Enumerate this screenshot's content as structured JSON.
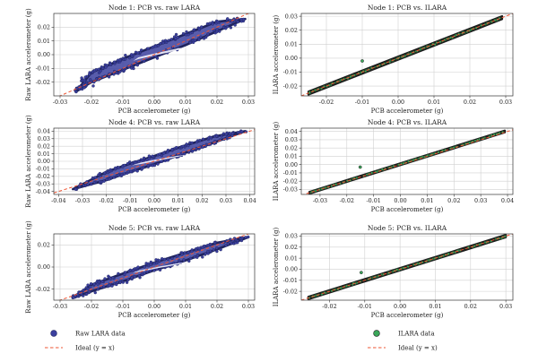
{
  "colors": {
    "raw_fill": "#3b3f9e",
    "raw_edge": "#20245e",
    "ilara_fill": "#3aa75a",
    "ilara_edge": "#1c1c1c",
    "ideal_line": "#ee5533",
    "grid": "#d0d0d0",
    "center_gap": "#f6f6ff"
  },
  "legend": [
    {
      "marker": "circle",
      "color_key": "raw_fill",
      "label": "Raw LARA data"
    },
    {
      "marker": "dashed-line",
      "color_key": "ideal_line",
      "label": "Ideal (y = x)"
    },
    {
      "marker": "circle",
      "color_key": "ilara_fill",
      "label": "ILARA data"
    },
    {
      "marker": "dashed-line",
      "color_key": "ideal_line",
      "label": "Ideal (y = x)"
    }
  ],
  "chart_data": [
    {
      "type": "scatter",
      "title": "Node 1: PCB vs. raw LARA",
      "xlabel": "PCB accelerometer (g)",
      "ylabel": "Raw LARA accelerometer (g)",
      "xlim": [
        -0.032,
        0.032
      ],
      "ylim": [
        -0.03,
        0.03
      ],
      "xticks": [
        "-0.03",
        "-0.02",
        "-0.01",
        "0.00",
        "0.01",
        "0.02",
        "0.03"
      ],
      "yticks": [
        "-0.02",
        "-0.01",
        "0.00",
        "0.01",
        "0.02"
      ],
      "grid": true,
      "series": [
        {
          "kind": "loop",
          "color_key": "raw_fill",
          "x_range": [
            -0.025,
            0.029
          ],
          "y_range": [
            -0.027,
            0.028
          ],
          "points": [
            [
              -0.025,
              -0.027
            ],
            [
              -0.02,
              -0.02
            ],
            [
              -0.01,
              -0.011
            ],
            [
              0.0,
              -0.002
            ],
            [
              0.01,
              0.007
            ],
            [
              0.02,
              0.017
            ],
            [
              0.029,
              0.026
            ],
            [
              0.02,
              0.024
            ],
            [
              0.01,
              0.015
            ],
            [
              0.0,
              0.006
            ],
            [
              -0.01,
              -0.003
            ],
            [
              -0.02,
              -0.013
            ]
          ]
        },
        {
          "kind": "ideal",
          "color_key": "ideal_line",
          "x": [
            -0.032,
            0.032
          ],
          "y": [
            -0.032,
            0.032
          ]
        }
      ]
    },
    {
      "type": "scatter",
      "title": "Node 1: PCB vs. ILARA",
      "xlabel": "PCB accelerometer (g)",
      "ylabel": "ILARA accelerometer (g)",
      "xlim": [
        -0.027,
        0.032
      ],
      "ylim": [
        -0.027,
        0.032
      ],
      "xticks": [
        "-0.02",
        "-0.01",
        "0.00",
        "0.01",
        "0.02",
        "0.03"
      ],
      "yticks": [
        "-0.02",
        "-0.01",
        "0.00",
        "0.01",
        "0.02",
        "0.03"
      ],
      "grid": true,
      "series": [
        {
          "kind": "band",
          "color_key": "ilara_fill",
          "x_range": [
            -0.025,
            0.029
          ],
          "y_range": [
            -0.025,
            0.029
          ],
          "outliers": [
            [
              -0.01,
              -0.002
            ]
          ]
        },
        {
          "kind": "ideal",
          "color_key": "ideal_line",
          "x": [
            -0.027,
            0.032
          ],
          "y": [
            -0.027,
            0.032
          ]
        }
      ]
    },
    {
      "type": "scatter",
      "title": "Node 4: PCB vs. raw LARA",
      "xlabel": "PCB accelerometer (g)",
      "ylabel": "Raw LARA accelerometer (g)",
      "xlim": [
        -0.042,
        0.042
      ],
      "ylim": [
        -0.044,
        0.044
      ],
      "xticks": [
        "-0.04",
        "-0.03",
        "-0.02",
        "-0.01",
        "0.00",
        "0.01",
        "0.02",
        "0.03",
        "0.04"
      ],
      "yticks": [
        "-0.04",
        "-0.03",
        "-0.02",
        "-0.01",
        "0.00",
        "0.01",
        "0.02",
        "0.03",
        "0.04"
      ],
      "grid": true,
      "series": [
        {
          "kind": "loop",
          "color_key": "raw_fill",
          "x_range": [
            -0.034,
            0.038
          ],
          "y_range": [
            -0.037,
            0.04
          ],
          "points": [
            [
              -0.034,
              -0.037
            ],
            [
              -0.02,
              -0.025
            ],
            [
              -0.01,
              -0.014
            ],
            [
              0.0,
              -0.004
            ],
            [
              0.01,
              0.008
            ],
            [
              0.02,
              0.019
            ],
            [
              0.038,
              0.04
            ],
            [
              0.025,
              0.033
            ],
            [
              0.01,
              0.018
            ],
            [
              0.0,
              0.007
            ],
            [
              -0.01,
              -0.003
            ],
            [
              -0.02,
              -0.014
            ]
          ]
        },
        {
          "kind": "ideal",
          "color_key": "ideal_line",
          "x": [
            -0.042,
            0.042
          ],
          "y": [
            -0.042,
            0.042
          ]
        }
      ]
    },
    {
      "type": "scatter",
      "title": "Node 4: PCB vs. ILARA",
      "xlabel": "PCB accelerometer (g)",
      "ylabel": "ILARA accelerometer (g)",
      "xlim": [
        -0.037,
        0.042
      ],
      "ylim": [
        -0.036,
        0.044
      ],
      "xticks": [
        "-0.03",
        "-0.02",
        "-0.01",
        "0.00",
        "0.01",
        "0.02",
        "0.03",
        "0.04"
      ],
      "yticks": [
        "-0.03",
        "-0.02",
        "-0.01",
        "0.00",
        "0.01",
        "0.02",
        "0.03",
        "0.04"
      ],
      "grid": true,
      "series": [
        {
          "kind": "band",
          "color_key": "ilara_fill",
          "x_range": [
            -0.034,
            0.039
          ],
          "y_range": [
            -0.034,
            0.04
          ],
          "outliers": [
            [
              -0.015,
              -0.003
            ]
          ]
        },
        {
          "kind": "ideal",
          "color_key": "ideal_line",
          "x": [
            -0.037,
            0.042
          ],
          "y": [
            -0.037,
            0.042
          ]
        }
      ]
    },
    {
      "type": "scatter",
      "title": "Node 5: PCB vs. raw LARA",
      "xlabel": "PCB accelerometer (g)",
      "ylabel": "Raw LARA accelerometer (g)",
      "xlim": [
        -0.032,
        0.032
      ],
      "ylim": [
        -0.03,
        0.03
      ],
      "xticks": [
        "-0.03",
        "-0.02",
        "-0.01",
        "0.00",
        "0.01",
        "0.02",
        "0.03"
      ],
      "yticks": [
        "-0.02",
        "0.00",
        "0.02"
      ],
      "grid": true,
      "series": [
        {
          "kind": "loop",
          "color_key": "raw_fill",
          "x_range": [
            -0.026,
            0.03
          ],
          "y_range": [
            -0.028,
            0.027
          ],
          "points": [
            [
              -0.026,
              -0.028
            ],
            [
              -0.02,
              -0.022
            ],
            [
              -0.01,
              -0.013
            ],
            [
              0.0,
              -0.003
            ],
            [
              0.01,
              0.006
            ],
            [
              0.02,
              0.016
            ],
            [
              0.03,
              0.027
            ],
            [
              0.02,
              0.022
            ],
            [
              0.01,
              0.013
            ],
            [
              0.0,
              0.004
            ],
            [
              -0.01,
              -0.006
            ],
            [
              -0.02,
              -0.016
            ]
          ]
        },
        {
          "kind": "ideal",
          "color_key": "ideal_line",
          "x": [
            -0.032,
            0.032
          ],
          "y": [
            -0.032,
            0.032
          ]
        }
      ]
    },
    {
      "type": "scatter",
      "title": "Node 5: PCB vs. ILARA",
      "xlabel": "PCB accelerometer (g)",
      "ylabel": "ILARA accelerometer (g)",
      "xlim": [
        -0.028,
        0.032
      ],
      "ylim": [
        -0.028,
        0.032
      ],
      "xticks": [
        "-0.02",
        "-0.01",
        "0.00",
        "0.01",
        "0.02",
        "0.03"
      ],
      "yticks": [
        "-0.02",
        "-0.01",
        "0.00",
        "0.01",
        "0.02",
        "0.03"
      ],
      "grid": true,
      "series": [
        {
          "kind": "band",
          "color_key": "ilara_fill",
          "x_range": [
            -0.026,
            0.03
          ],
          "y_range": [
            -0.026,
            0.03
          ],
          "outliers": [
            [
              -0.011,
              -0.003
            ]
          ]
        },
        {
          "kind": "ideal",
          "color_key": "ideal_line",
          "x": [
            -0.028,
            0.032
          ],
          "y": [
            -0.028,
            0.032
          ]
        }
      ]
    }
  ]
}
